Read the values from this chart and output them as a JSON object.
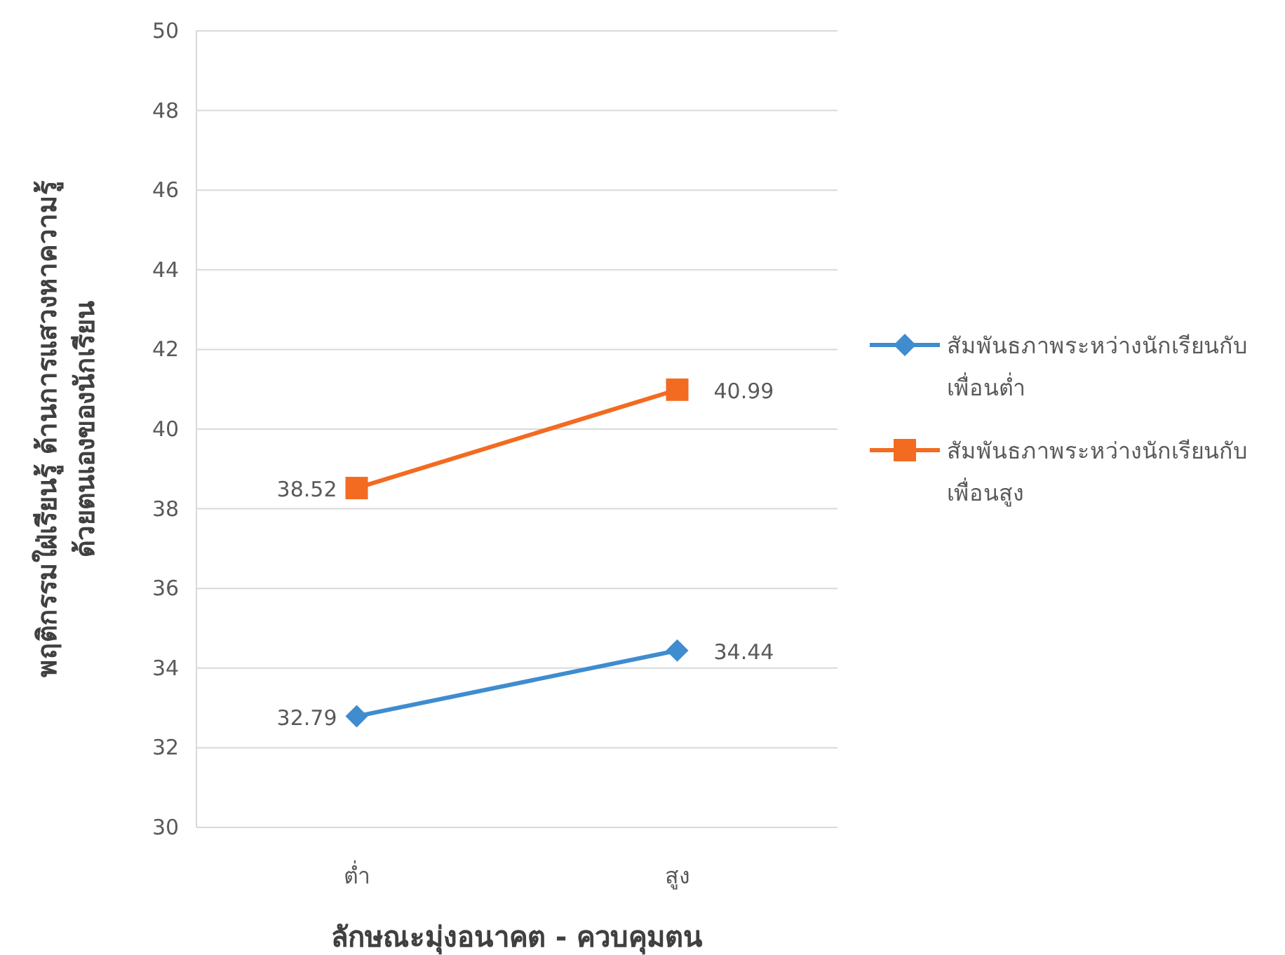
{
  "chart_data": {
    "type": "line",
    "xlabel": "ลักษณะมุ่งอนาคต - ควบคุมตน",
    "ylabel": "พฤติกรรมใฝ่เรียนรู้ ด้านการแสวงหาความรู้\nด้วยตนเองของนักเรียน",
    "categories": [
      "ต่ำ",
      "สูง"
    ],
    "series": [
      {
        "name": "สัมพันธภาพระหว่างนักเรียนกับเพื่อนต่ำ",
        "color": "#3f8ccf",
        "marker": "diamond",
        "values": [
          32.79,
          34.44
        ]
      },
      {
        "name": "สัมพันธภาพระหว่างนักเรียนกับเพื่อนสูง",
        "color": "#f26b21",
        "marker": "square",
        "values": [
          38.52,
          40.99
        ]
      }
    ],
    "ylim": [
      30,
      50
    ],
    "yticks": [
      30,
      32,
      34,
      36,
      38,
      40,
      42,
      44,
      46,
      48,
      50
    ],
    "grid": "y",
    "legend": "right",
    "data_labels": true,
    "line_style": "solid"
  }
}
